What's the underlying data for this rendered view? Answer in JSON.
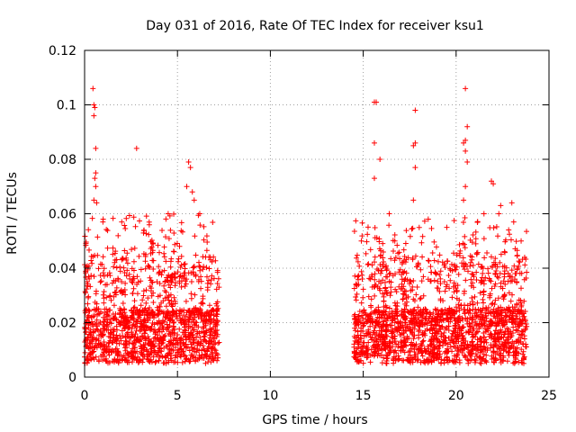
{
  "chart_data": {
    "type": "scatter",
    "title": "Day 031 of 2016, Rate Of TEC Index for receiver ksu1",
    "xlabel": "GPS time / hours",
    "ylabel": "ROTI / TECUs",
    "xlim": [
      0,
      25
    ],
    "ylim": [
      0,
      0.12
    ],
    "xticks": [
      0,
      5,
      10,
      15,
      20,
      25
    ],
    "xtick_labels": [
      "0",
      "5",
      "10",
      "15",
      "20",
      "25"
    ],
    "yticks": [
      0,
      0.02,
      0.04,
      0.06,
      0.08,
      0.1,
      0.12
    ],
    "ytick_labels": [
      "0",
      "0.02",
      "0.04",
      "0.06",
      "0.08",
      "0.1",
      "0.12"
    ],
    "grid": true,
    "marker": "+",
    "color": "#ff0000",
    "series": [
      {
        "name": "ksu1 ROTI",
        "coverage": [
          [
            0.0,
            7.2
          ],
          [
            14.5,
            23.8
          ]
        ],
        "baseline_range": [
          0.005,
          0.025
        ],
        "outliers": [
          [
            0.45,
            0.106
          ],
          [
            0.5,
            0.1
          ],
          [
            0.55,
            0.099
          ],
          [
            0.5,
            0.096
          ],
          [
            0.6,
            0.084
          ],
          [
            0.6,
            0.075
          ],
          [
            0.55,
            0.073
          ],
          [
            0.6,
            0.07
          ],
          [
            0.5,
            0.065
          ],
          [
            0.65,
            0.064
          ],
          [
            2.8,
            0.084
          ],
          [
            5.6,
            0.079
          ],
          [
            5.7,
            0.077
          ],
          [
            5.5,
            0.07
          ],
          [
            5.8,
            0.068
          ],
          [
            5.9,
            0.065
          ],
          [
            6.2,
            0.06
          ],
          [
            1.0,
            0.058
          ],
          [
            2.0,
            0.057
          ],
          [
            4.5,
            0.06
          ],
          [
            15.6,
            0.101
          ],
          [
            15.7,
            0.101
          ],
          [
            15.6,
            0.086
          ],
          [
            15.9,
            0.08
          ],
          [
            15.6,
            0.073
          ],
          [
            17.8,
            0.098
          ],
          [
            17.8,
            0.086
          ],
          [
            17.7,
            0.085
          ],
          [
            17.8,
            0.077
          ],
          [
            17.7,
            0.065
          ],
          [
            20.5,
            0.106
          ],
          [
            20.6,
            0.092
          ],
          [
            20.5,
            0.087
          ],
          [
            20.4,
            0.086
          ],
          [
            20.5,
            0.083
          ],
          [
            20.6,
            0.079
          ],
          [
            20.5,
            0.07
          ],
          [
            20.4,
            0.065
          ],
          [
            21.9,
            0.072
          ],
          [
            22.0,
            0.071
          ],
          [
            23.0,
            0.064
          ],
          [
            23.1,
            0.057
          ],
          [
            22.4,
            0.063
          ],
          [
            22.3,
            0.06
          ],
          [
            16.4,
            0.06
          ],
          [
            18.5,
            0.058
          ],
          [
            19.5,
            0.055
          ],
          [
            21.5,
            0.06
          ],
          [
            23.5,
            0.05
          ],
          [
            14.9,
            0.05
          ]
        ]
      }
    ]
  }
}
